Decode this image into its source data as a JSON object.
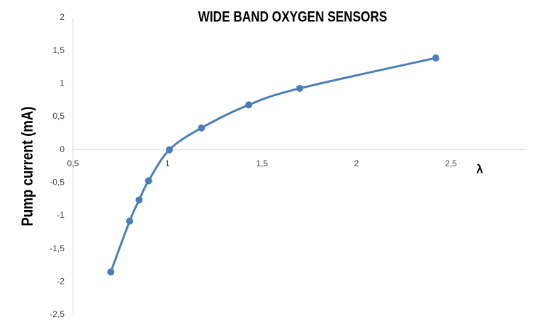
{
  "chart_data": {
    "type": "line",
    "title": "WIDE BAND OXYGEN SENSORS",
    "x_label": "λ",
    "y_label": "Pump current (mA)",
    "series": [
      {
        "name": null,
        "color": "#4a7ebb",
        "x": [
          0.7,
          0.8,
          0.85,
          0.9,
          1.01,
          1.18,
          1.43,
          1.7,
          2.42
        ],
        "values": [
          -1.85,
          -1.08,
          -0.76,
          -0.47,
          0,
          0.33,
          0.68,
          0.93,
          1.39
        ]
      }
    ],
    "smooth": true,
    "markers": true,
    "xlim": [
      0.5,
      2.9
    ],
    "ylim": [
      -2.5,
      2
    ],
    "xticks": [
      {
        "value": 0.5,
        "label": "0,5"
      },
      1,
      {
        "value": 1.5,
        "label": "1,5"
      },
      2,
      {
        "value": 2.5,
        "label": "2,5"
      }
    ],
    "yticks": [
      2,
      {
        "value": 1.5,
        "label": "1,5"
      },
      1,
      {
        "value": 0.5,
        "label": "0,5"
      },
      0,
      {
        "value": -0.5,
        "label": "-0,5"
      },
      -1,
      {
        "value": -1.5,
        "label": "-1,5"
      },
      -2,
      {
        "value": -2.5,
        "label": "-2,5"
      }
    ],
    "grid": false
  }
}
